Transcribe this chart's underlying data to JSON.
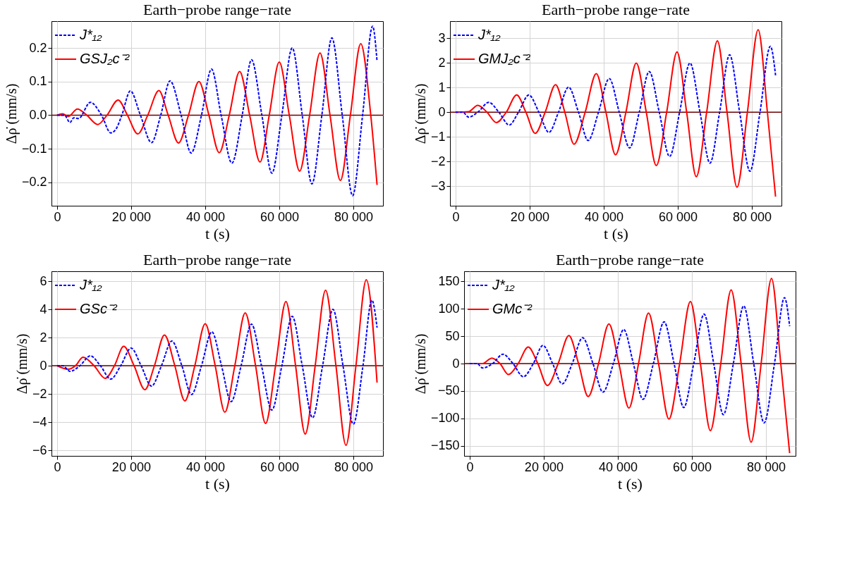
{
  "chart_data": [
    {
      "type": "line",
      "title": "Earth−probe  range−rate",
      "xlabel": "t (s)",
      "ylabel": "Δρ̇ (mm/s)",
      "grid": true,
      "legend": "top left",
      "line_style": "solid",
      "xlim": [
        -1500,
        88000
      ],
      "xticks": [
        {
          "value": 0,
          "label": "0"
        },
        {
          "value": 20000,
          "label": "20 000"
        },
        {
          "value": 40000,
          "label": "40 000"
        },
        {
          "value": 60000,
          "label": "60 000"
        },
        {
          "value": 80000,
          "label": "80 000"
        }
      ],
      "ylim": [
        -0.27,
        0.28
      ],
      "yticks": [
        -0.2,
        -0.1,
        {
          "value": 0,
          "label": "0.0"
        },
        0.1,
        0.2
      ],
      "ref_lines": [
        {
          "axis": "y",
          "value": 0,
          "color": "#6b0000"
        }
      ],
      "series": [
        {
          "name": "J*₁₂",
          "color": "#0000ff",
          "line_style": "dashed",
          "x": [
            0,
            2000,
            3500,
            4500,
            5800,
            9000,
            12000,
            14500,
            16000,
            17500,
            19800,
            22500,
            25500,
            28000,
            30500,
            33500,
            36200,
            39000,
            41700,
            44300,
            47200,
            50000,
            52500,
            55300,
            58000,
            60700,
            63500,
            66200,
            68800,
            71500,
            74200,
            77000,
            79800,
            82500,
            85200,
            86400
          ],
          "values": [
            0,
            0,
            -0.022,
            -0.008,
            -0.01,
            0.038,
            0,
            -0.053,
            -0.04,
            0,
            0.072,
            0,
            -0.082,
            0,
            0.102,
            0,
            -0.113,
            0,
            0.137,
            0,
            -0.143,
            0,
            0.165,
            0,
            -0.173,
            0,
            0.2,
            0,
            -0.205,
            0,
            0.23,
            0,
            -0.24,
            0,
            0.265,
            0.16
          ]
        },
        {
          "name": "GSJ₂c⁻²",
          "color": "#ff0000",
          "line_style": "solid",
          "x": [
            0,
            1500,
            3000,
            5500,
            8000,
            11000,
            13500,
            16500,
            19000,
            21800,
            24500,
            27500,
            30000,
            32800,
            35500,
            38300,
            41000,
            43800,
            46500,
            49300,
            52000,
            54800,
            57300,
            60000,
            62700,
            65500,
            68200,
            71000,
            73700,
            76500,
            79200,
            82000,
            84700,
            86400
          ],
          "values": [
            0,
            0.004,
            -0.004,
            0.018,
            0,
            -0.028,
            0,
            0.045,
            0,
            -0.056,
            0,
            0.073,
            0,
            -0.083,
            0,
            0.1,
            0,
            -0.112,
            0,
            0.13,
            0,
            -0.14,
            0,
            0.158,
            0,
            -0.167,
            0,
            0.185,
            0,
            -0.195,
            0,
            0.213,
            0,
            -0.208
          ]
        }
      ]
    },
    {
      "type": "line",
      "title": "Earth−probe  range−rate",
      "xlabel": "t (s)",
      "ylabel": "Δρ̇ (mm/s)",
      "grid": true,
      "legend": "top left",
      "line_style": "solid",
      "xlim": [
        -1500,
        88000
      ],
      "xticks": [
        {
          "value": 0,
          "label": "0"
        },
        {
          "value": 20000,
          "label": "20 000"
        },
        {
          "value": 40000,
          "label": "40 000"
        },
        {
          "value": 60000,
          "label": "60 000"
        },
        {
          "value": 80000,
          "label": "80 000"
        }
      ],
      "ylim": [
        -3.8,
        3.7
      ],
      "yticks": [
        -3,
        -2,
        -1,
        0,
        1,
        2,
        3
      ],
      "ref_lines": [
        {
          "axis": "y",
          "value": 0,
          "color": "#6b0000"
        }
      ],
      "series": [
        {
          "name": "J*₁₂",
          "color": "#0000ff",
          "line_style": "dashed",
          "x": [
            0,
            2000,
            3500,
            6000,
            9000,
            11700,
            14500,
            17000,
            19800,
            22500,
            25200,
            27800,
            30500,
            33200,
            35800,
            38600,
            41500,
            44200,
            47000,
            49600,
            52300,
            55000,
            57800,
            60500,
            63300,
            66000,
            68700,
            71300,
            74000,
            76700,
            79500,
            82200,
            85000,
            86400
          ],
          "values": [
            0,
            0,
            -0.2,
            0,
            0.4,
            0,
            -0.52,
            0,
            0.7,
            0,
            -0.82,
            0,
            1.02,
            0,
            -1.15,
            0,
            1.37,
            0,
            -1.45,
            0,
            1.65,
            0,
            -1.8,
            0,
            2.0,
            0,
            -2.07,
            0,
            2.33,
            0,
            -2.4,
            0,
            2.68,
            1.5
          ]
        },
        {
          "name": "GMJ₂c⁻²",
          "color": "#ff0000",
          "line_style": "solid",
          "x": [
            0,
            3500,
            6000,
            8500,
            11000,
            13700,
            16500,
            19000,
            21500,
            24200,
            27000,
            29500,
            32000,
            35000,
            38000,
            40600,
            43200,
            46000,
            48800,
            51500,
            54200,
            57000,
            59800,
            62400,
            65000,
            67800,
            70700,
            73300,
            76000,
            78800,
            81700,
            84200,
            86400
          ],
          "values": [
            0,
            0.02,
            0.28,
            0,
            -0.42,
            0,
            0.7,
            0,
            -0.86,
            0,
            1.12,
            0,
            -1.3,
            0,
            1.57,
            0,
            -1.73,
            0,
            2.0,
            0,
            -2.17,
            0,
            2.45,
            0,
            -2.62,
            0,
            2.9,
            0,
            -3.05,
            0,
            3.35,
            0,
            -3.43
          ]
        }
      ]
    },
    {
      "type": "line",
      "title": "Earth−probe  range−rate",
      "xlabel": "t (s)",
      "ylabel": "Δρ̇ (mm/s)",
      "grid": true,
      "legend": "top left",
      "line_style": "solid",
      "xlim": [
        -1500,
        88000
      ],
      "xticks": [
        {
          "value": 0,
          "label": "0"
        },
        {
          "value": 20000,
          "label": "20 000"
        },
        {
          "value": 40000,
          "label": "40 000"
        },
        {
          "value": 60000,
          "label": "60 000"
        },
        {
          "value": 80000,
          "label": "80 000"
        }
      ],
      "ylim": [
        -6.4,
        6.7
      ],
      "yticks": [
        -6,
        -4,
        -2,
        0,
        2,
        4,
        6
      ],
      "ref_lines": [
        {
          "axis": "y",
          "value": 0,
          "color": "#6b0000"
        }
      ],
      "series": [
        {
          "name": "J*₁₂",
          "color": "#0000ff",
          "line_style": "dashed",
          "x": [
            0,
            1500,
            3500,
            6200,
            9000,
            11700,
            14500,
            17200,
            20000,
            22700,
            25500,
            28200,
            31000,
            33700,
            36300,
            39000,
            41800,
            44400,
            47000,
            49700,
            52500,
            55200,
            58000,
            60700,
            63500,
            66200,
            69000,
            71700,
            74500,
            77200,
            80000,
            82600,
            85000,
            86400
          ],
          "values": [
            0,
            0,
            -0.4,
            0,
            0.7,
            0,
            -0.95,
            0,
            1.25,
            0,
            -1.45,
            0,
            1.75,
            0,
            -2.05,
            0,
            2.4,
            0,
            -2.55,
            0,
            2.95,
            0,
            -3.15,
            0,
            3.5,
            0,
            -3.7,
            0,
            4.0,
            0,
            -4.15,
            0,
            4.65,
            2.7
          ]
        },
        {
          "name": "GSc⁻²",
          "color": "#ff0000",
          "line_style": "solid",
          "x": [
            0,
            3000,
            5000,
            7000,
            10000,
            13000,
            15500,
            18000,
            20800,
            23700,
            26300,
            29000,
            31800,
            34500,
            37200,
            40000,
            42700,
            45300,
            48000,
            50800,
            53600,
            56300,
            59000,
            61800,
            64400,
            67000,
            69700,
            72500,
            75300,
            78000,
            80700,
            83500,
            86400
          ],
          "values": [
            0,
            -0.25,
            0,
            0.6,
            0,
            -0.9,
            0,
            1.37,
            0,
            -1.7,
            0,
            2.18,
            0,
            -2.5,
            0,
            2.97,
            0,
            -3.3,
            0,
            3.75,
            0,
            -4.1,
            0,
            4.55,
            0,
            -4.85,
            0,
            5.35,
            0,
            -5.65,
            0,
            6.1,
            -1.2
          ]
        }
      ]
    },
    {
      "type": "line",
      "title": "Earth−probe  range−rate",
      "xlabel": "t (s)",
      "ylabel": "Δρ̇ (mm/s)",
      "grid": true,
      "legend": "top left",
      "line_style": "solid",
      "xlim": [
        -1500,
        88000
      ],
      "xticks": [
        {
          "value": 0,
          "label": "0"
        },
        {
          "value": 20000,
          "label": "20 000"
        },
        {
          "value": 40000,
          "label": "40 000"
        },
        {
          "value": 60000,
          "label": "60 000"
        },
        {
          "value": 80000,
          "label": "80 000"
        }
      ],
      "ylim": [
        -168,
        168
      ],
      "yticks": [
        -150,
        -100,
        -50,
        0,
        50,
        100,
        150
      ],
      "ref_lines": [
        {
          "axis": "y",
          "value": 0,
          "color": "#6b0000"
        }
      ],
      "series": [
        {
          "name": "J*₁₂",
          "color": "#0000ff",
          "line_style": "dashed",
          "x": [
            0,
            2000,
            3500,
            6200,
            9000,
            11700,
            14500,
            17200,
            19800,
            22400,
            25000,
            27700,
            30500,
            33300,
            36000,
            38800,
            41600,
            44200,
            46800,
            49600,
            52500,
            55200,
            57800,
            60500,
            63300,
            65900,
            68500,
            71200,
            74000,
            76700,
            79500,
            82300,
            85000,
            86400
          ],
          "values": [
            0,
            0,
            -8,
            0,
            17,
            0,
            -24,
            0,
            33,
            0,
            -37,
            0,
            47,
            0,
            -52,
            0,
            62,
            0,
            -65,
            0,
            76,
            0,
            -80,
            0,
            90,
            0,
            -93,
            0,
            105,
            0,
            -108,
            0,
            120,
            68
          ]
        },
        {
          "name": "GMc⁻²",
          "color": "#ff0000",
          "line_style": "solid",
          "x": [
            0,
            3500,
            6000,
            8200,
            10500,
            13100,
            15800,
            18400,
            21000,
            23900,
            26800,
            29400,
            32000,
            34800,
            37600,
            40300,
            43000,
            45600,
            48300,
            51000,
            53800,
            56700,
            59600,
            62300,
            65000,
            67800,
            70600,
            73300,
            76000,
            78700,
            81500,
            84000,
            86400
          ],
          "values": [
            0,
            0,
            10,
            0,
            -20,
            0,
            30,
            0,
            -40,
            0,
            51,
            0,
            -60,
            0,
            72,
            0,
            -81,
            0,
            92,
            0,
            -101,
            0,
            113,
            0,
            -122,
            0,
            134,
            0,
            -143,
            0,
            155,
            0,
            -163
          ]
        }
      ]
    }
  ]
}
